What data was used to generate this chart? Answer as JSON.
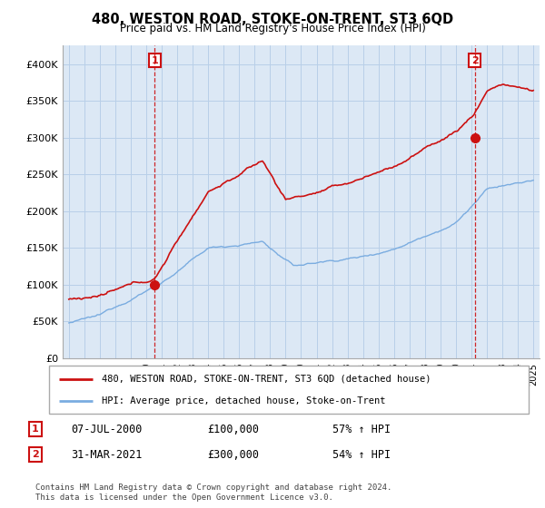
{
  "title": "480, WESTON ROAD, STOKE-ON-TRENT, ST3 6QD",
  "subtitle": "Price paid vs. HM Land Registry's House Price Index (HPI)",
  "ylim": [
    0,
    420000
  ],
  "yticks": [
    0,
    50000,
    100000,
    150000,
    200000,
    250000,
    300000,
    350000,
    400000
  ],
  "ytick_labels": [
    "£0",
    "£50K",
    "£100K",
    "£150K",
    "£200K",
    "£250K",
    "£300K",
    "£350K",
    "£400K"
  ],
  "hpi_color": "#7aace0",
  "price_color": "#cc1111",
  "chart_bg": "#dce8f5",
  "grid_color": "#b8cfe8",
  "marker1_date": "07-JUL-2000",
  "marker1_price": "£100,000",
  "marker1_hpi": "57% ↑ HPI",
  "marker2_date": "31-MAR-2021",
  "marker2_price": "£300,000",
  "marker2_hpi": "54% ↑ HPI",
  "legend_line1": "480, WESTON ROAD, STOKE-ON-TRENT, ST3 6QD (detached house)",
  "legend_line2": "HPI: Average price, detached house, Stoke-on-Trent",
  "footnote": "Contains HM Land Registry data © Crown copyright and database right 2024.\nThis data is licensed under the Open Government Licence v3.0."
}
